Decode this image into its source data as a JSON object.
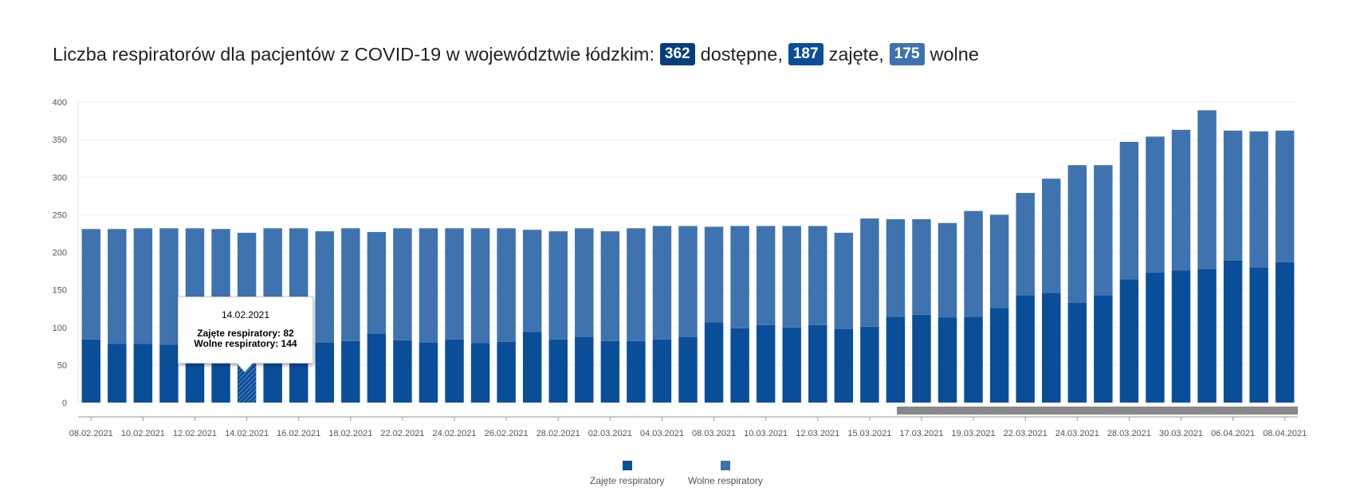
{
  "title": {
    "prefix": "Liczba respiratorów dla pacjentów z COVID-19 w województwie łódzkim:",
    "total": "362",
    "total_label": "dostępne,",
    "occupied": "187",
    "occupied_label": "zajęte,",
    "free": "175",
    "free_label": "wolne"
  },
  "colors": {
    "occupied": "#0a4e99",
    "free": "#3f73b0",
    "badge_total": "#063d7c",
    "scrollbar": "#888888",
    "axis": "#999999"
  },
  "tooltip": {
    "date": "14.02.2021",
    "line1": "Zajęte respiratory: 82",
    "line2": "Wolne respiratory: 144"
  },
  "legend": {
    "occupied": "Zajęte respiratory",
    "free": "Wolne respiratory"
  },
  "chart_data": {
    "type": "bar",
    "stacked": true,
    "ylim": [
      0,
      400
    ],
    "yticks": [
      0,
      50,
      100,
      150,
      200,
      250,
      300,
      350,
      400
    ],
    "xtick_labels": [
      "08.02.2021",
      "10.02.2021",
      "12.02.2021",
      "14.02.2021",
      "16.02.2021",
      "18.02.2021",
      "22.02.2021",
      "24.02.2021",
      "26.02.2021",
      "28.02.2021",
      "02.03.2021",
      "04.03.2021",
      "08.03.2021",
      "10.03.2021",
      "12.03.2021",
      "15.03.2021",
      "17.03.2021",
      "19.03.2021",
      "22.03.2021",
      "24.03.2021",
      "28.03.2021",
      "30.03.2021",
      "06.04.2021",
      "08.04.2021"
    ],
    "highlight_index": 6,
    "legend_position": "bottom",
    "series": [
      {
        "name": "Zajęte respiratory",
        "values": [
          84,
          78,
          78,
          77,
          80,
          80,
          82,
          78,
          79,
          80,
          82,
          92,
          83,
          80,
          84,
          79,
          81,
          94,
          84,
          87,
          82,
          82,
          84,
          87,
          107,
          99,
          103,
          100,
          103,
          98,
          101,
          114,
          117,
          113,
          114,
          126,
          143,
          146,
          133,
          143,
          164,
          173,
          176,
          178,
          189,
          180,
          187
        ]
      },
      {
        "name": "Wolne respiratory",
        "values": [
          147,
          153,
          154,
          155,
          152,
          151,
          144,
          154,
          153,
          148,
          150,
          135,
          149,
          152,
          148,
          153,
          151,
          136,
          144,
          145,
          146,
          150,
          151,
          148,
          127,
          136,
          132,
          135,
          132,
          128,
          144,
          130,
          127,
          126,
          141,
          124,
          136,
          152,
          183,
          173,
          183,
          181,
          187,
          211,
          173,
          181,
          175
        ]
      }
    ]
  }
}
